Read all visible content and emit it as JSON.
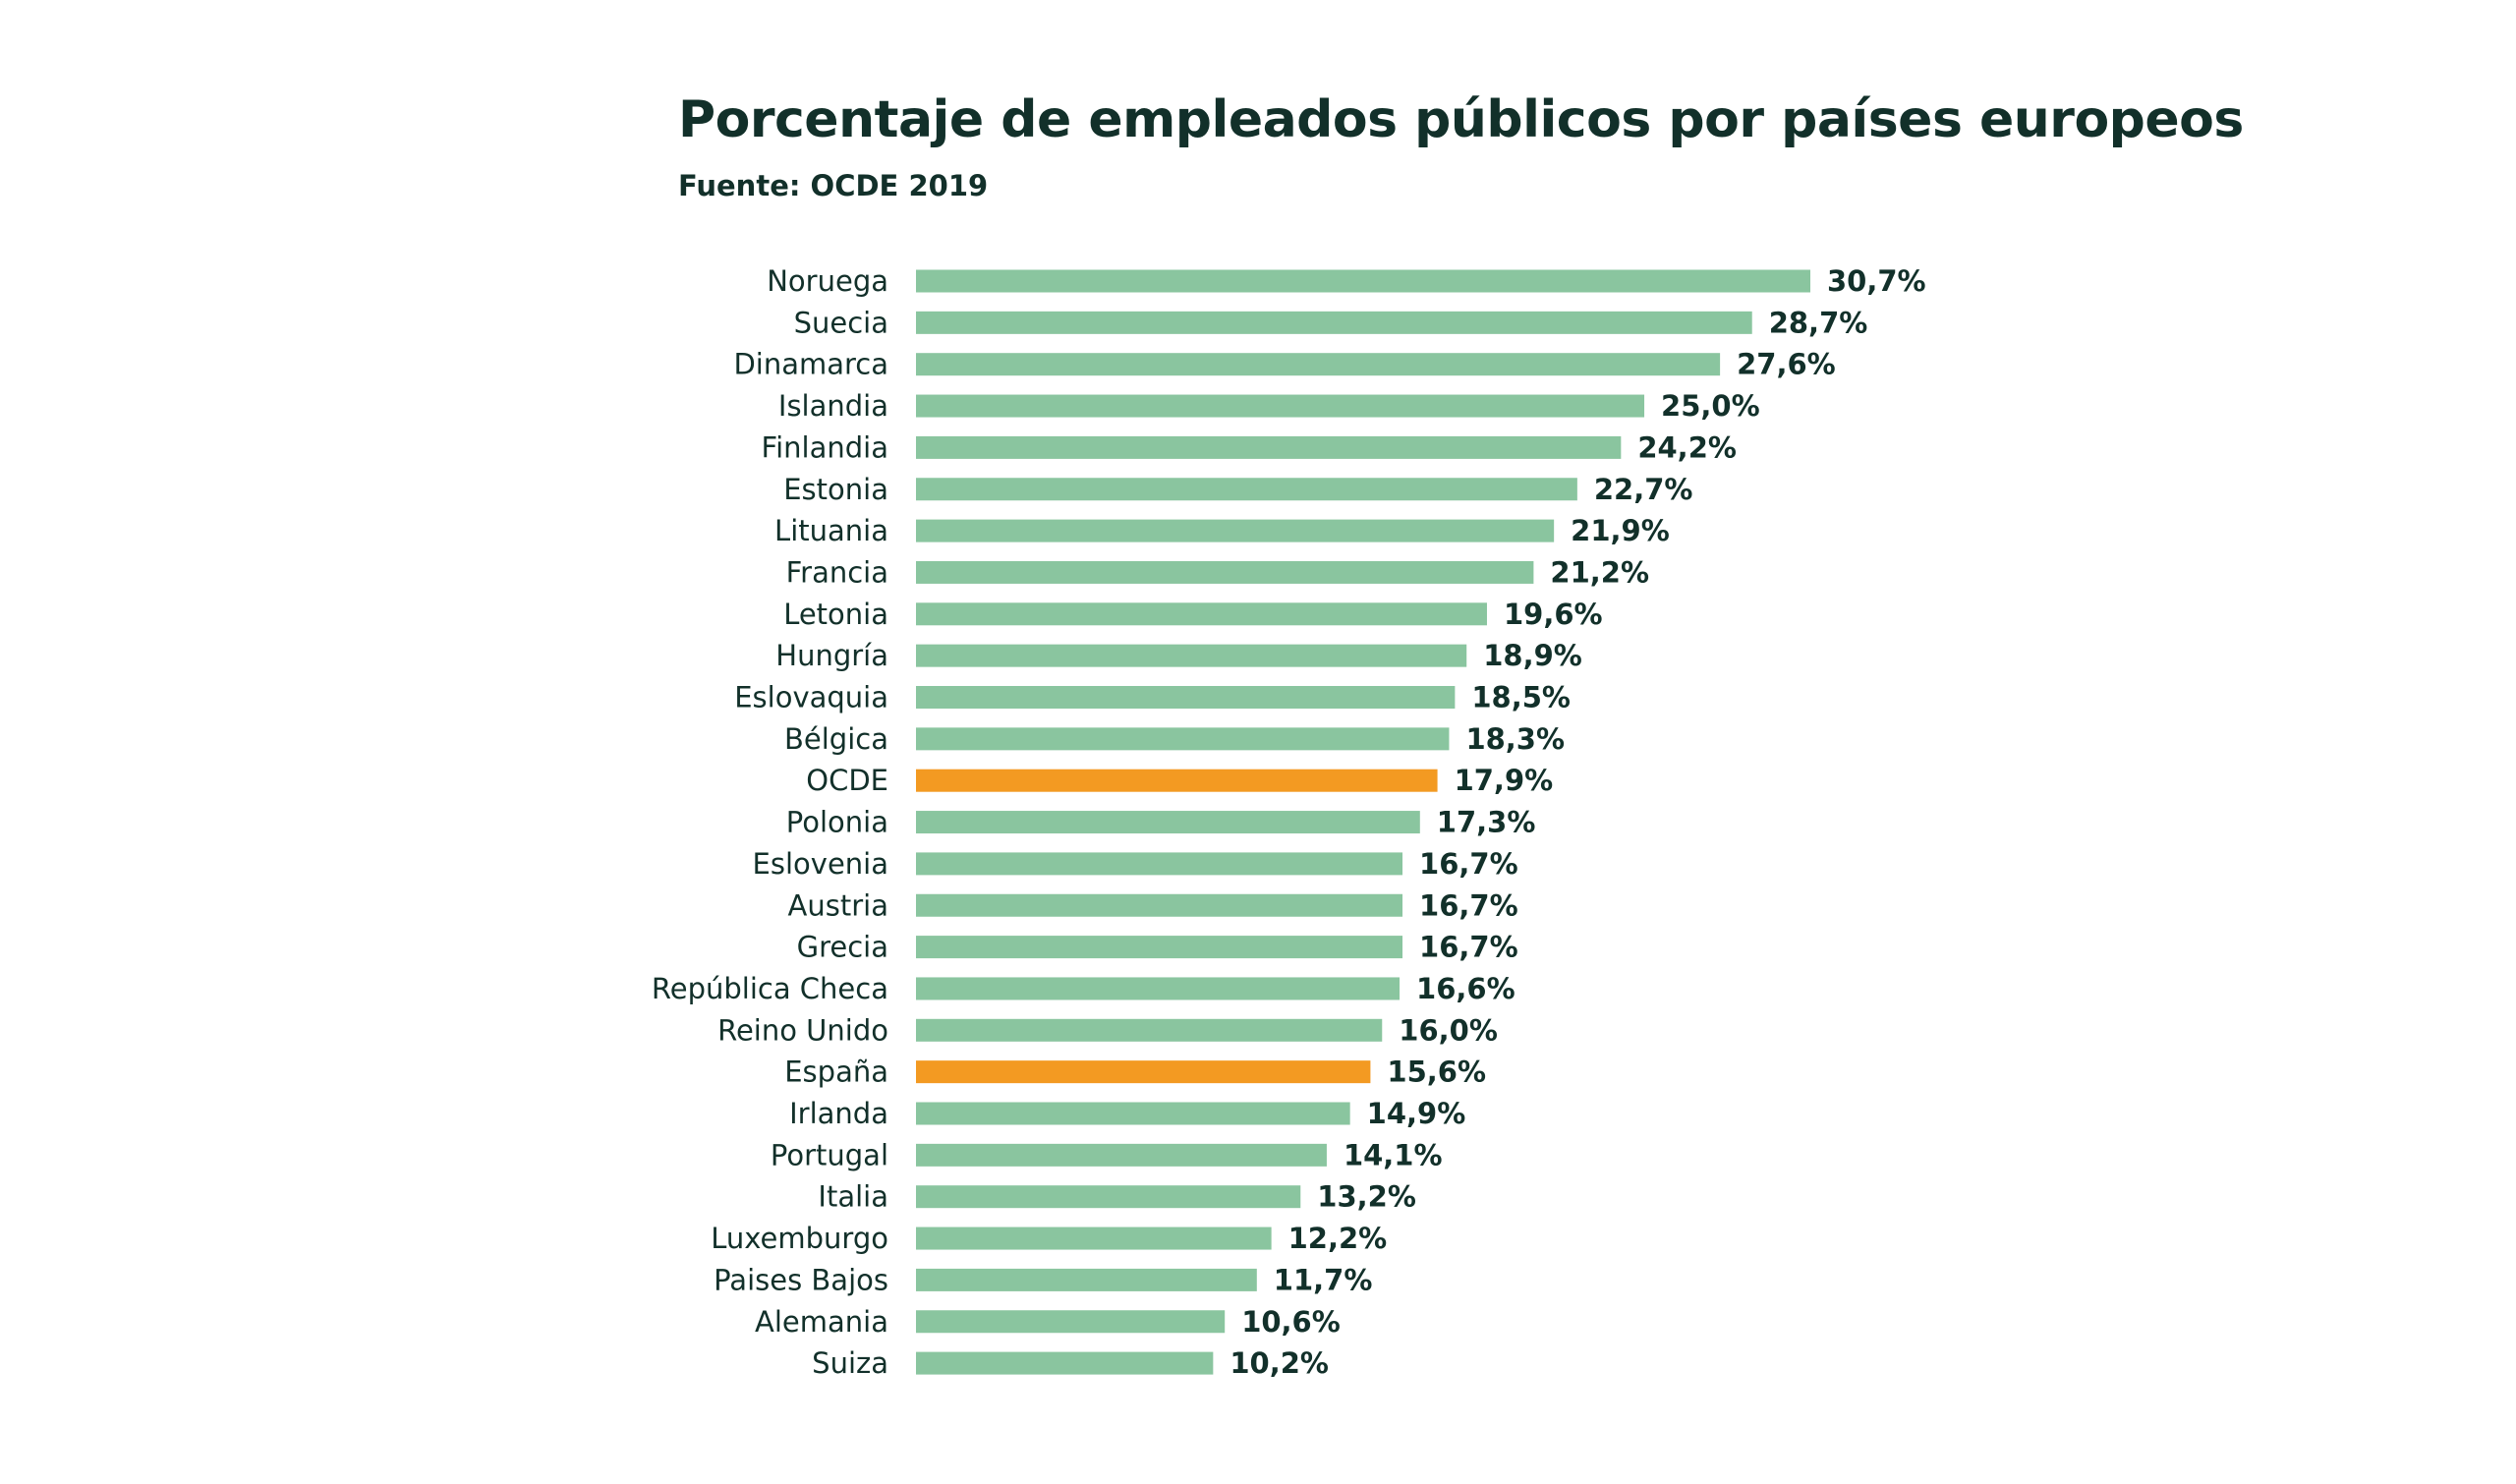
{
  "chart_data": {
    "type": "bar",
    "orientation": "horizontal",
    "title": "Porcentaje de empleados públicos por países europeos",
    "subtitle": "Fuente: OCDE 2019",
    "categories": [
      "Noruega",
      "Suecia",
      "Dinamarca",
      "Islandia",
      "Finlandia",
      "Estonia",
      "Lituania",
      "Francia",
      "Letonia",
      "Hungría",
      "Eslovaquia",
      "Bélgica",
      "OCDE",
      "Polonia",
      "Eslovenia",
      "Austria",
      "Grecia",
      "República Checa",
      "Reino Unido",
      "España",
      "Irlanda",
      "Portugal",
      "Italia",
      "Luxemburgo",
      "Paises Bajos",
      "Alemania",
      "Suiza"
    ],
    "values": [
      30.7,
      28.7,
      27.6,
      25.0,
      24.2,
      22.7,
      21.9,
      21.2,
      19.6,
      18.9,
      18.5,
      18.3,
      17.9,
      17.3,
      16.7,
      16.7,
      16.7,
      16.6,
      16.0,
      15.6,
      14.9,
      14.1,
      13.2,
      12.2,
      11.7,
      10.6,
      10.2
    ],
    "value_labels": [
      "30,7%",
      "28,7%",
      "27,6%",
      "25,0%",
      "24,2%",
      "22,7%",
      "21,9%",
      "21,2%",
      "19,6%",
      "18,9%",
      "18,5%",
      "18,3%",
      "17,9%",
      "17,3%",
      "16,7%",
      "16,7%",
      "16,7%",
      "16,6%",
      "16,0%",
      "15,6%",
      "14,9%",
      "14,1%",
      "13,2%",
      "12,2%",
      "11,7%",
      "10,6%",
      "10,2%"
    ],
    "highlighted": [
      "OCDE",
      "España"
    ],
    "xlim": [
      0,
      30.7
    ],
    "xlabel": "",
    "ylabel": "",
    "grid": false,
    "legend": "none",
    "colors": {
      "bar": "#8ac59f",
      "highlight": "#f39a22",
      "text": "#12302a"
    }
  }
}
